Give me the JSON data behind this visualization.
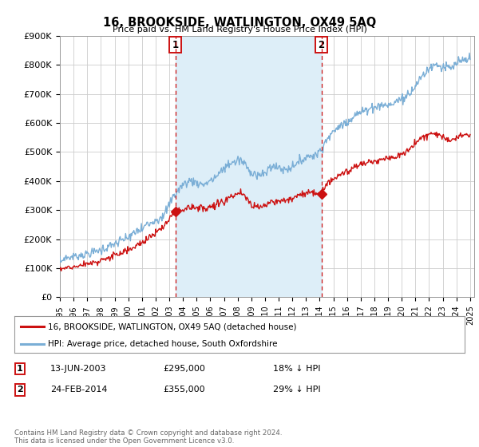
{
  "title": "16, BROOKSIDE, WATLINGTON, OX49 5AQ",
  "subtitle": "Price paid vs. HM Land Registry's House Price Index (HPI)",
  "background_color": "#ffffff",
  "plot_background": "#ffffff",
  "grid_color": "#cccccc",
  "ylim": [
    0,
    900000
  ],
  "yticks": [
    0,
    100000,
    200000,
    300000,
    400000,
    500000,
    600000,
    700000,
    800000,
    900000
  ],
  "ytick_labels": [
    "£0",
    "£100K",
    "£200K",
    "£300K",
    "£400K",
    "£500K",
    "£600K",
    "£700K",
    "£800K",
    "£900K"
  ],
  "sale1_date_num": 2003.45,
  "sale1_price": 295000,
  "sale1_label": "1",
  "sale2_date_num": 2014.12,
  "sale2_price": 355000,
  "sale2_label": "2",
  "hpi_color": "#7aaed6",
  "hpi_fill_color": "#ddeef8",
  "price_color": "#cc1111",
  "legend_label_red": "16, BROOKSIDE, WATLINGTON, OX49 5AQ (detached house)",
  "legend_label_blue": "HPI: Average price, detached house, South Oxfordshire",
  "table_row1": [
    "1",
    "13-JUN-2003",
    "£295,000",
    "18% ↓ HPI"
  ],
  "table_row2": [
    "2",
    "24-FEB-2014",
    "£355,000",
    "29% ↓ HPI"
  ],
  "footnote": "Contains HM Land Registry data © Crown copyright and database right 2024.\nThis data is licensed under the Open Government Licence v3.0.",
  "xmin": 1995.0,
  "xmax": 2025.3
}
